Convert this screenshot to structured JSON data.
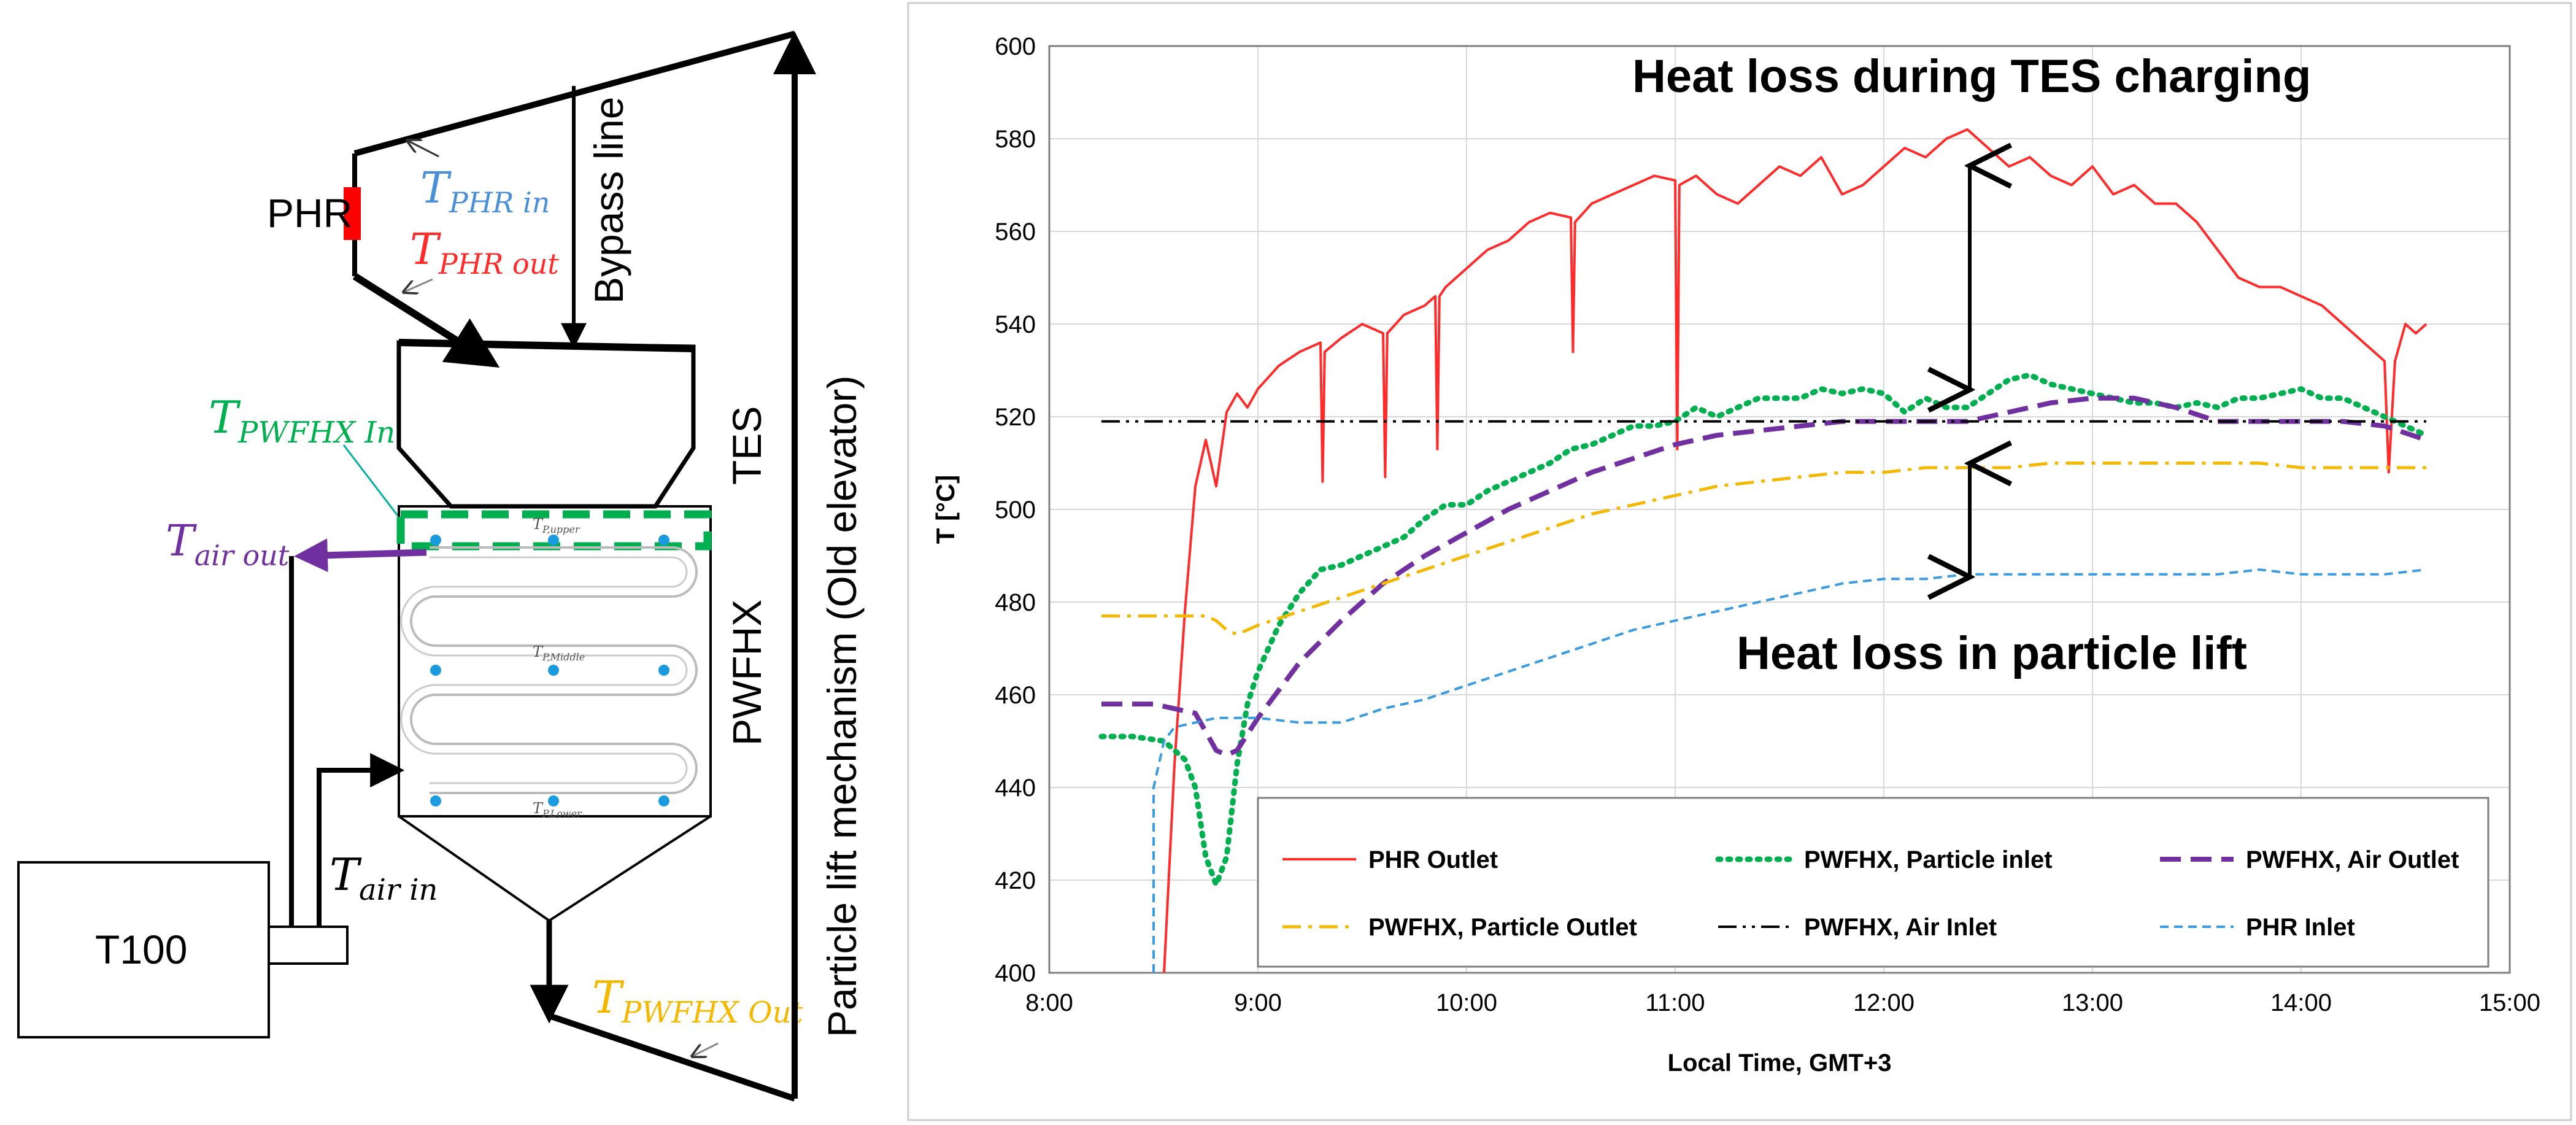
{
  "colors": {
    "phr_outlet": "#ff2a2a",
    "particle_inlet": "#00b050",
    "air_outlet": "#7030a0",
    "particle_outlet": "#f5b800",
    "air_inlet": "#000000",
    "phr_inlet": "#3a9be0",
    "phr_in_label": "#4a90d9",
    "phr_out_label": "#ff2a2a",
    "pwfhx_in_label": "#00b050",
    "air_out_label": "#7030a0",
    "pwfhx_out_label": "#f5b800"
  },
  "schematic": {
    "phr_label": "PHR",
    "t_phr_in": "T",
    "t_phr_in_sub": "PHR in",
    "t_phr_out": "T",
    "t_phr_out_sub": "PHR out",
    "bypass_line": "Bypass line",
    "tes_label": "TES",
    "t_pwfhx_in": "T",
    "t_pwfhx_in_sub": "PWFHX In",
    "t_air_out": "T",
    "t_air_out_sub": "air out",
    "pwfhx_label": "PWFHX",
    "tp_upper": "T",
    "tp_upper_sub": "P,upper",
    "tp_middle": "T",
    "tp_middle_sub": "P,Middle",
    "tp_lower": "T",
    "tp_lower_sub": "P,Lower",
    "t_air_in": "T",
    "t_air_in_sub": "air in",
    "t100_label": "T100",
    "t_pwfhx_out": "T",
    "t_pwfhx_out_sub": "PWFHX Out",
    "lift_label": "Particle lift mechanism (Old elevator)"
  },
  "chart_data": {
    "type": "line",
    "title": "",
    "xlabel": "Local Time, GMT+3",
    "ylabel": "T [°C]",
    "xlim": [
      8.0,
      15.0
    ],
    "ylim": [
      400,
      600
    ],
    "x_ticks": [
      8,
      9,
      10,
      11,
      12,
      13,
      14,
      15
    ],
    "x_tick_labels": [
      "8:00",
      "9:00",
      "10:00",
      "11:00",
      "12:00",
      "13:00",
      "14:00",
      "15:00"
    ],
    "y_ticks": [
      400,
      420,
      440,
      460,
      480,
      500,
      520,
      540,
      560,
      580,
      600
    ],
    "grid": true,
    "annotations": {
      "tes_loss": "Heat loss during TES charging",
      "lift_loss": "Heat loss in particle lift"
    },
    "series": [
      {
        "name": "PHR Outlet",
        "style": "solid",
        "x": [
          8.55,
          8.6,
          8.65,
          8.7,
          8.75,
          8.8,
          8.85,
          8.9,
          8.95,
          9.0,
          9.1,
          9.2,
          9.3,
          9.31,
          9.32,
          9.4,
          9.5,
          9.6,
          9.61,
          9.62,
          9.7,
          9.8,
          9.85,
          9.86,
          9.87,
          9.9,
          10.0,
          10.1,
          10.2,
          10.3,
          10.4,
          10.5,
          10.51,
          10.52,
          10.6,
          10.7,
          10.8,
          10.9,
          11.0,
          11.01,
          11.02,
          11.1,
          11.2,
          11.3,
          11.4,
          11.5,
          11.6,
          11.7,
          11.8,
          11.9,
          12.0,
          12.1,
          12.2,
          12.3,
          12.4,
          12.5,
          12.6,
          12.7,
          12.8,
          12.9,
          13.0,
          13.1,
          13.2,
          13.3,
          13.4,
          13.5,
          13.6,
          13.7,
          13.8,
          13.9,
          14.0,
          14.1,
          14.2,
          14.3,
          14.4,
          14.42,
          14.45,
          14.5,
          14.55,
          14.6
        ],
        "values": [
          400,
          445,
          478,
          505,
          515,
          505,
          521,
          525,
          522,
          526,
          531,
          534,
          536,
          506,
          534,
          537,
          540,
          538,
          507,
          538,
          542,
          544,
          546,
          513,
          546,
          548,
          552,
          556,
          558,
          562,
          564,
          563,
          534,
          562,
          566,
          568,
          570,
          572,
          571,
          513,
          570,
          572,
          568,
          566,
          570,
          574,
          572,
          576,
          568,
          570,
          574,
          578,
          576,
          580,
          582,
          578,
          574,
          576,
          572,
          570,
          574,
          568,
          570,
          566,
          566,
          562,
          556,
          550,
          548,
          548,
          546,
          544,
          540,
          536,
          532,
          508,
          532,
          540,
          538,
          540
        ]
      },
      {
        "name": "PWFHX, Particle inlet",
        "style": "dotted",
        "x": [
          8.25,
          8.4,
          8.55,
          8.6,
          8.65,
          8.7,
          8.75,
          8.8,
          8.85,
          8.9,
          8.95,
          9.0,
          9.1,
          9.2,
          9.3,
          9.4,
          9.5,
          9.6,
          9.7,
          9.8,
          9.9,
          10.0,
          10.1,
          10.2,
          10.3,
          10.4,
          10.5,
          10.6,
          10.7,
          10.8,
          10.9,
          11.0,
          11.1,
          11.2,
          11.3,
          11.4,
          11.5,
          11.6,
          11.7,
          11.8,
          11.9,
          12.0,
          12.1,
          12.2,
          12.3,
          12.4,
          12.5,
          12.6,
          12.7,
          12.8,
          12.9,
          13.0,
          13.1,
          13.2,
          13.3,
          13.4,
          13.5,
          13.6,
          13.7,
          13.8,
          13.9,
          14.0,
          14.1,
          14.2,
          14.3,
          14.4,
          14.5,
          14.6
        ],
        "values": [
          451,
          451,
          450,
          448,
          446,
          440,
          425,
          419,
          425,
          445,
          458,
          465,
          475,
          482,
          487,
          488,
          490,
          492,
          494,
          498,
          501,
          501,
          504,
          506,
          508,
          510,
          513,
          514,
          516,
          518,
          518,
          519,
          522,
          520,
          522,
          524,
          524,
          524,
          526,
          525,
          526,
          525,
          521,
          524,
          522,
          522,
          525,
          528,
          529,
          527,
          526,
          525,
          524,
          523,
          523,
          522,
          523,
          522,
          524,
          524,
          525,
          526,
          524,
          524,
          522,
          520,
          518,
          516
        ]
      },
      {
        "name": "PWFHX, Air Outlet",
        "style": "dashed",
        "x": [
          8.25,
          8.5,
          8.6,
          8.7,
          8.75,
          8.8,
          8.85,
          8.9,
          9.0,
          9.2,
          9.4,
          9.6,
          9.8,
          10.0,
          10.2,
          10.4,
          10.6,
          10.8,
          11.0,
          11.2,
          11.4,
          11.6,
          11.8,
          12.0,
          12.2,
          12.4,
          12.6,
          12.8,
          13.0,
          13.2,
          13.4,
          13.6,
          13.8,
          14.0,
          14.2,
          14.4,
          14.6
        ],
        "values": [
          458,
          458,
          457,
          456,
          452,
          448,
          447,
          448,
          455,
          467,
          476,
          484,
          490,
          495,
          500,
          504,
          508,
          511,
          514,
          516,
          517,
          518,
          519,
          519,
          519,
          519,
          521,
          523,
          524,
          524,
          522,
          519,
          519,
          519,
          519,
          518,
          515
        ]
      },
      {
        "name": "PWFHX, Particle Outlet",
        "style": "dashdot",
        "x": [
          8.25,
          8.5,
          8.6,
          8.7,
          8.75,
          8.8,
          8.85,
          8.9,
          9.0,
          9.2,
          9.4,
          9.6,
          9.8,
          10.0,
          10.2,
          10.4,
          10.6,
          10.8,
          11.0,
          11.2,
          11.4,
          11.6,
          11.8,
          12.0,
          12.2,
          12.4,
          12.6,
          12.8,
          13.0,
          13.2,
          13.4,
          13.6,
          13.8,
          14.0,
          14.2,
          14.4,
          14.6
        ],
        "values": [
          477,
          477,
          477,
          477,
          477,
          476,
          474,
          473,
          475,
          478,
          481,
          484,
          487,
          490,
          493,
          496,
          499,
          501,
          503,
          505,
          506,
          507,
          508,
          508,
          509,
          509,
          509,
          510,
          510,
          510,
          510,
          510,
          510,
          509,
          509,
          509,
          509
        ]
      },
      {
        "name": "PWFHX, Air Inlet",
        "style": "dashdotdot",
        "x": [
          8.25,
          14.6
        ],
        "values": [
          519,
          519
        ]
      },
      {
        "name": "PHR Inlet",
        "style": "shortdash",
        "x": [
          8.5,
          8.5,
          8.55,
          8.6,
          8.7,
          8.8,
          9.0,
          9.2,
          9.4,
          9.6,
          9.8,
          10.0,
          10.2,
          10.4,
          10.6,
          10.8,
          11.0,
          11.2,
          11.4,
          11.6,
          11.8,
          12.0,
          12.2,
          12.4,
          12.6,
          12.8,
          13.0,
          13.2,
          13.4,
          13.6,
          13.8,
          14.0,
          14.2,
          14.4,
          14.6
        ],
        "values": [
          400,
          440,
          450,
          453,
          454,
          455,
          455,
          454,
          454,
          457,
          459,
          462,
          465,
          468,
          471,
          474,
          476,
          478,
          480,
          482,
          484,
          485,
          485,
          486,
          486,
          486,
          486,
          486,
          486,
          486,
          487,
          486,
          486,
          486,
          487
        ]
      }
    ],
    "legend": {
      "placement": "bottom",
      "entries": [
        "PHR Outlet",
        "PWFHX, Particle inlet",
        "PWFHX, Air Outlet",
        "PWFHX, Particle Outlet",
        "PWFHX, Air Inlet",
        "PHR Inlet"
      ]
    }
  }
}
